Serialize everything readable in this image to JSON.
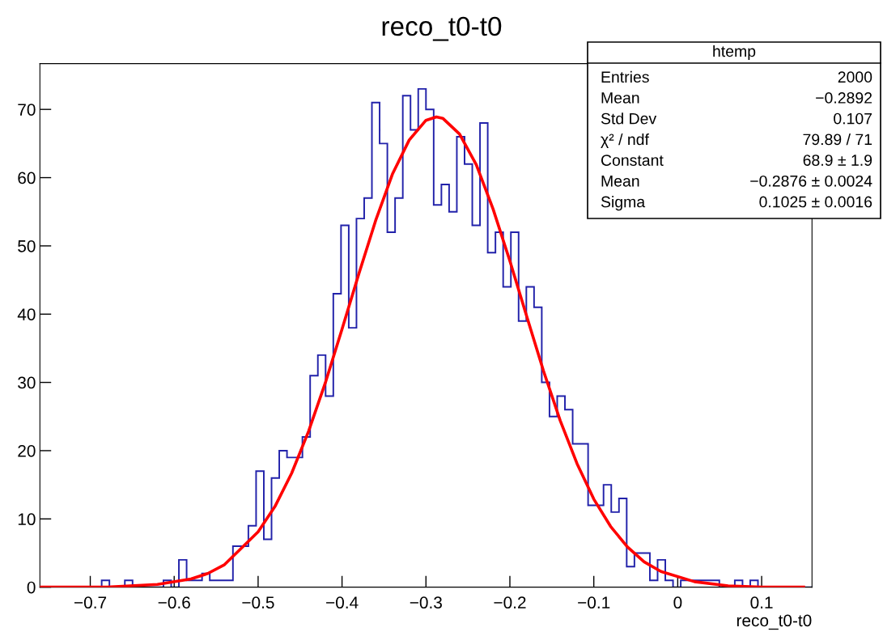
{
  "chart_data": {
    "type": "histogram",
    "title": "reco_t0-t0",
    "xlabel": "reco_t0-t0",
    "xlim": [
      -0.76,
      0.16
    ],
    "xticks": [
      {
        "value": -0.7,
        "label": "−0.7"
      },
      {
        "value": -0.6,
        "label": "−0.6"
      },
      {
        "value": -0.5,
        "label": "−0.5"
      },
      {
        "value": -0.4,
        "label": "−0.4"
      },
      {
        "value": -0.3,
        "label": "−0.3"
      },
      {
        "value": -0.2,
        "label": "−0.2"
      },
      {
        "value": -0.1,
        "label": "−0.1"
      },
      0,
      0.1
    ],
    "ylim": [
      0,
      76.7
    ],
    "yticks": [
      0,
      10,
      20,
      30,
      40,
      50,
      60,
      70
    ],
    "grid": false,
    "series": [
      {
        "type": "histogram",
        "color": "#2222aa",
        "bins": [
          -0.76,
          -0.7508,
          -0.7416,
          -0.7324,
          -0.7232,
          -0.714,
          -0.7048,
          -0.6956,
          -0.6864,
          -0.6772,
          -0.668,
          -0.6588,
          -0.6496,
          -0.6404,
          -0.6312,
          -0.622,
          -0.6128,
          -0.6036,
          -0.5944,
          -0.5852,
          -0.576,
          -0.5668,
          -0.5576,
          -0.5484,
          -0.5392,
          -0.53,
          -0.5208,
          -0.5116,
          -0.5024,
          -0.4932,
          -0.484,
          -0.4748,
          -0.4656,
          -0.4564,
          -0.4472,
          -0.438,
          -0.4288,
          -0.4196,
          -0.4104,
          -0.4012,
          -0.392,
          -0.3828,
          -0.3736,
          -0.3644,
          -0.3552,
          -0.346,
          -0.3368,
          -0.3276,
          -0.3184,
          -0.3092,
          -0.3,
          -0.2908,
          -0.2816,
          -0.2724,
          -0.2632,
          -0.254,
          -0.2448,
          -0.2356,
          -0.2264,
          -0.2172,
          -0.208,
          -0.1988,
          -0.1896,
          -0.1804,
          -0.1712,
          -0.162,
          -0.1528,
          -0.1436,
          -0.1344,
          -0.1252,
          -0.116,
          -0.1068,
          -0.0976,
          -0.0884,
          -0.0792,
          -0.07,
          -0.0608,
          -0.0516,
          -0.0424,
          -0.0332,
          -0.024,
          -0.0148,
          -0.0056,
          0.0036,
          0.0128,
          0.022,
          0.0312,
          0.0404,
          0.0496,
          0.0588,
          0.068,
          0.0772,
          0.0864,
          0.0956,
          0.1048,
          0.114,
          0.1232,
          0.1324,
          0.1416,
          0.1508,
          0.16
        ],
        "values": [
          0,
          0,
          0,
          0,
          0,
          0,
          0,
          0,
          1,
          0,
          0,
          1,
          0,
          0,
          0,
          0,
          1,
          0,
          4,
          1,
          1,
          2,
          1,
          1,
          1,
          6,
          6,
          9,
          17,
          7,
          16,
          20,
          19,
          19,
          22,
          31,
          34,
          28,
          43,
          53,
          38,
          54,
          57,
          71,
          65,
          52,
          57,
          72,
          67,
          73,
          70,
          56,
          59,
          55,
          66,
          62,
          53,
          68,
          49,
          52,
          44,
          52,
          39,
          44,
          41,
          30,
          25,
          28,
          26,
          21,
          21,
          12,
          12,
          15,
          11,
          13,
          3,
          5,
          5,
          1,
          4,
          1,
          0,
          1,
          1,
          1,
          1,
          1,
          0,
          0,
          1,
          0,
          1,
          0,
          0,
          0,
          0,
          0,
          0,
          0
        ]
      },
      {
        "type": "line",
        "color": "#ff0000",
        "x": [
          -0.76,
          -0.68,
          -0.62,
          -0.58,
          -0.56,
          -0.54,
          -0.5,
          -0.48,
          -0.46,
          -0.44,
          -0.42,
          -0.4,
          -0.38,
          -0.36,
          -0.34,
          -0.32,
          -0.3,
          -0.2876,
          -0.28,
          -0.26,
          -0.24,
          -0.22,
          -0.2,
          -0.18,
          -0.16,
          -0.14,
          -0.12,
          -0.1,
          -0.08,
          -0.06,
          -0.04,
          -0.02,
          0.02,
          0.06,
          0.1,
          0.15
        ],
        "values": [
          0,
          0,
          0.4,
          1.2,
          2,
          3.3,
          8.1,
          11.8,
          16.7,
          22.8,
          29.9,
          37.8,
          45.9,
          53.7,
          60.5,
          65.5,
          68.4,
          68.9,
          68.7,
          66.4,
          61.9,
          55.4,
          47.8,
          39.7,
          31.7,
          24.4,
          18.1,
          12.9,
          8.9,
          5.9,
          3.7,
          2.3,
          0.8,
          0.2,
          0,
          0
        ]
      }
    ],
    "annotations": [
      "htemp",
      "Entries",
      "2000",
      "Mean",
      "−0.2892",
      "Std Dev",
      "0.107",
      "χ² / ndf",
      "79.89 / 71",
      "Constant",
      "68.9 ± 1.9",
      "Mean",
      "−0.2876 ± 0.0024",
      "Sigma",
      "0.1025 ± 0.0016"
    ]
  }
}
